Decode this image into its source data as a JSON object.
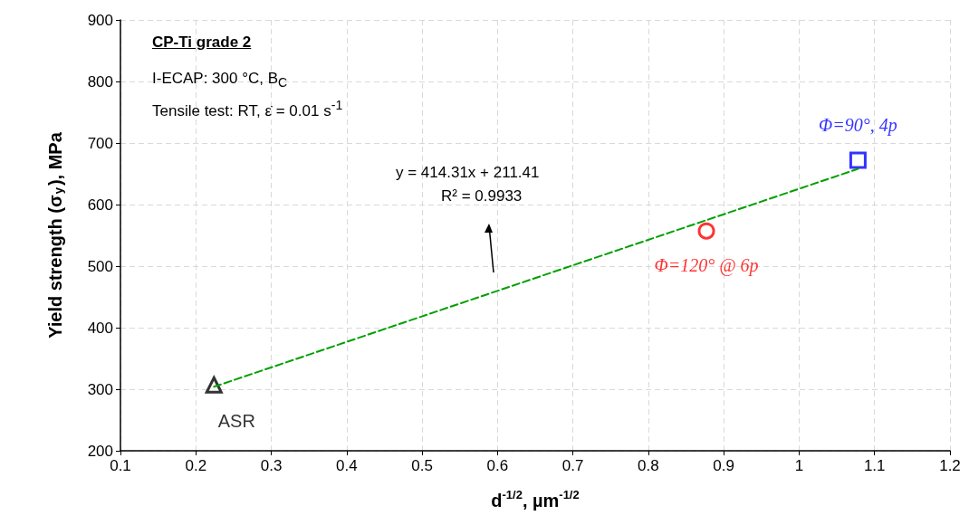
{
  "chart_data": {
    "type": "scatter",
    "xlabel": "d$^{-1/2}$, µm$^{-1/2}$",
    "ylabel": "Yield strength (σ$_{y}$), MPa",
    "xlim": [
      0.1,
      1.2
    ],
    "xticks": [
      0.1,
      0.2,
      0.3,
      0.4,
      0.5,
      0.6,
      0.7,
      0.8,
      0.9,
      1,
      1.1,
      1.2
    ],
    "ylim": [
      200,
      900
    ],
    "yticks": [
      200,
      300,
      400,
      500,
      600,
      700,
      800,
      900
    ],
    "grid": true,
    "legend": false,
    "series": [
      {
        "name": "ASR",
        "color": "#000000",
        "marker": "triangle",
        "x": [
          0.224
        ],
        "values": [
          307
        ]
      },
      {
        "name": "Φ=120° @ 6p",
        "color": "#ff0000",
        "marker": "circle",
        "x": [
          0.877
        ],
        "values": [
          557
        ]
      },
      {
        "name": "Φ=90°, 4p",
        "color": "#0000ff",
        "marker": "square",
        "x": [
          1.078
        ],
        "values": [
          672
        ]
      },
      {
        "type": "line",
        "color": "#00a000",
        "marker": "none",
        "line_style": "dashed",
        "x": [
          0.224,
          1.078
        ],
        "values": [
          304,
          658
        ]
      }
    ],
    "annotations": [
      "CP-Ti grade 2",
      "I-ECAP: 300 °C, B$_{C}$",
      "Tensile test: RT, ε̇ = 0.01 s$^{-1}$",
      "y = 414.31x + 211.41",
      "R² = 0.9933"
    ]
  }
}
